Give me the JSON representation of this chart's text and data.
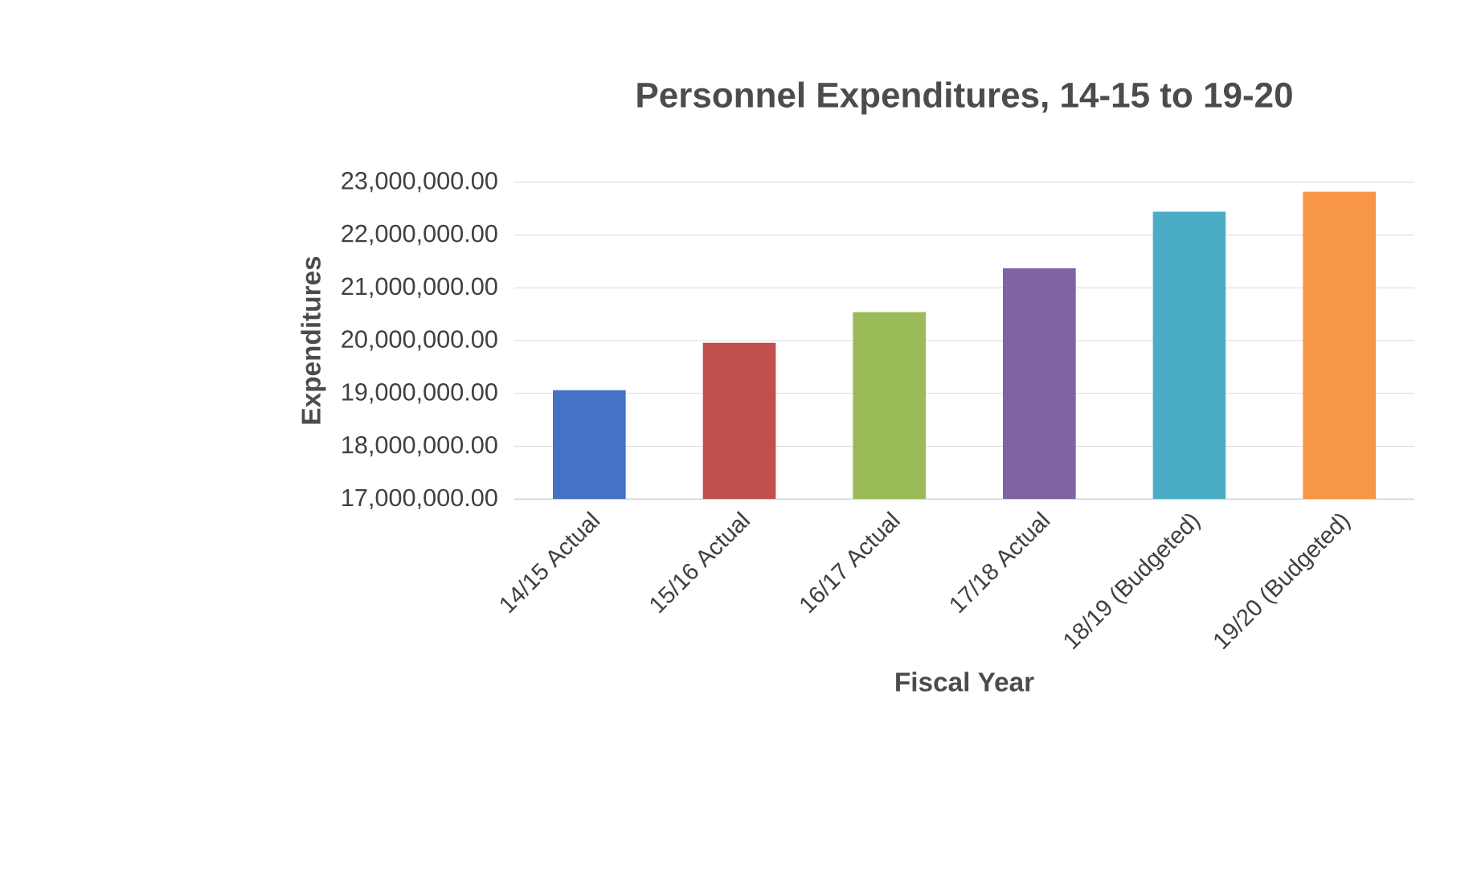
{
  "chart_data": {
    "type": "bar",
    "title": "Personnel Expenditures, 14-15 to 19-20",
    "xlabel": "Fiscal Year",
    "ylabel": "Expenditures",
    "categories": [
      "14/15 Actual",
      "15/16 Actual",
      "16/17 Actual",
      "17/18 Actual",
      "18/19 (Budgeted)",
      "19/20 (Budgeted)"
    ],
    "values": [
      19060000,
      19960000,
      20540000,
      21370000,
      22440000,
      22820000
    ],
    "colors": [
      "#4472c4",
      "#c0504d",
      "#9bbb59",
      "#8064a2",
      "#4bacc6",
      "#f79646"
    ],
    "ylim": [
      17000000,
      23000000
    ],
    "yticks": [
      {
        "value": 17000000,
        "label": "17,000,000.00"
      },
      {
        "value": 18000000,
        "label": "18,000,000.00"
      },
      {
        "value": 19000000,
        "label": "19,000,000.00"
      },
      {
        "value": 20000000,
        "label": "20,000,000.00"
      },
      {
        "value": 21000000,
        "label": "21,000,000.00"
      },
      {
        "value": 22000000,
        "label": "22,000,000.00"
      },
      {
        "value": 23000000,
        "label": "23,000,000.00"
      }
    ],
    "grid": "y"
  }
}
